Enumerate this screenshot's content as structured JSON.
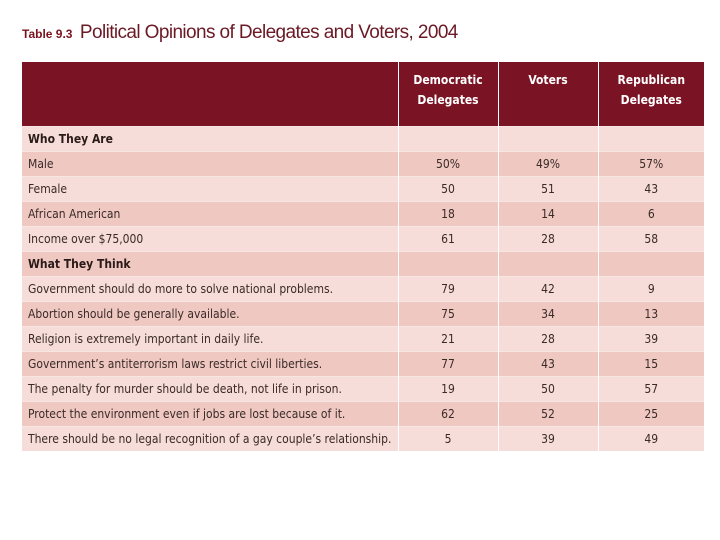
{
  "title": {
    "number": "Table 9.3",
    "text": "Political Opinions of Delegates and Voters, 2004"
  },
  "columns": {
    "democratic": [
      "Democratic",
      "Delegates"
    ],
    "voters": "Voters",
    "republican": [
      "Republican",
      "Delegates"
    ]
  },
  "sections": {
    "who": {
      "heading": "Who They Are",
      "rows": [
        {
          "label": "Male",
          "dem": "50%",
          "vot": "49%",
          "rep": "57%"
        },
        {
          "label": "Female",
          "dem": "50",
          "vot": "51",
          "rep": "43"
        },
        {
          "label": "African American",
          "dem": "18",
          "vot": "14",
          "rep": "6"
        },
        {
          "label": "Income over $75,000",
          "dem": "61",
          "vot": "28",
          "rep": "58"
        }
      ]
    },
    "what": {
      "heading": "What They Think",
      "rows": [
        {
          "label": "Government should do more to solve national problems.",
          "dem": "79",
          "vot": "42",
          "rep": "9"
        },
        {
          "label": "Abortion should be generally available.",
          "dem": "75",
          "vot": "34",
          "rep": "13"
        },
        {
          "label": "Religion is extremely important in daily life.",
          "dem": "21",
          "vot": "28",
          "rep": "39"
        },
        {
          "label": "Government’s antiterrorism laws restrict civil liberties.",
          "dem": "77",
          "vot": "43",
          "rep": "15"
        },
        {
          "label": "The penalty for murder should be death, not life in prison.",
          "dem": "19",
          "vot": "50",
          "rep": "57"
        },
        {
          "label": "Protect the environment even if jobs are lost because of it.",
          "dem": "62",
          "vot": "52",
          "rep": "25"
        },
        {
          "label": "There should be no legal recognition of a gay couple’s relationship.",
          "dem": "5",
          "vot": "39",
          "rep": "49"
        }
      ]
    }
  },
  "colors": {
    "header_bg": "#7a1424",
    "row_light": "#f7ddd9",
    "row_dark": "#efc8c2"
  }
}
